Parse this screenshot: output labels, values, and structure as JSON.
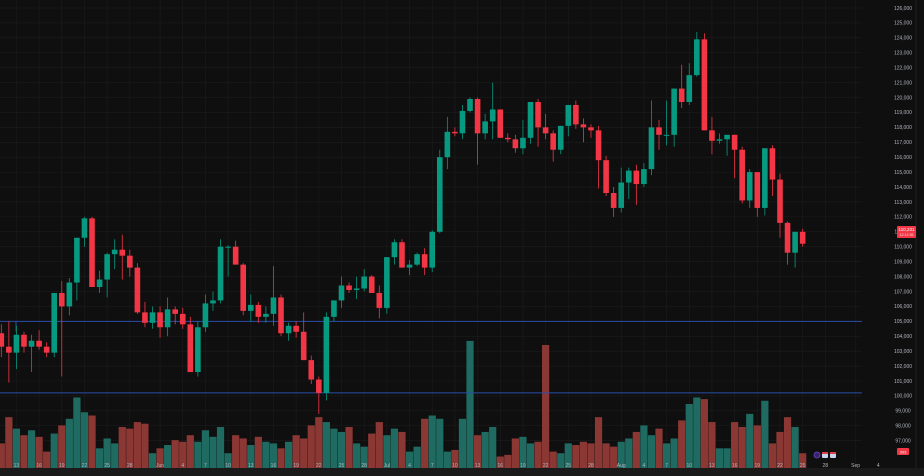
{
  "colors": {
    "background": "#0f0f0f",
    "up": "#089981",
    "down": "#f23645",
    "volume_up": "#1f6b62",
    "volume_down": "#8b3834",
    "grid": "#1c1c1c",
    "hline": "#2a4ea8",
    "axis_text": "#b2b5be",
    "price_tag": "#f23645"
  },
  "price_tag": {
    "price": "110,231",
    "countdown": "12:12:36"
  },
  "volume_tag": {
    "label": "393"
  },
  "hlines": [
    105000,
    100200
  ],
  "chart_data": {
    "type": "candlestick",
    "title": "",
    "xlabel": "",
    "ylabel": "",
    "ylim": [
      96000,
      126000
    ],
    "grid": true,
    "y_ticks": [
      126000,
      125000,
      124000,
      123000,
      122000,
      121000,
      120000,
      119000,
      118000,
      117000,
      116000,
      115000,
      114000,
      113000,
      112000,
      111000,
      110000,
      109000,
      108000,
      107000,
      106000,
      105000,
      104000,
      103000,
      102000,
      101000,
      100000,
      99000,
      98000,
      97000
    ],
    "y_tick_labels": [
      "126,000",
      "125,000",
      "124,000",
      "123,000",
      "122,000",
      "121,000",
      "120,000",
      "119,000",
      "118,000",
      "117,000",
      "116,000",
      "115,000",
      "114,000",
      "113,000",
      "112,000",
      "111,000",
      "110,000",
      "109,000",
      "108,000",
      "107,000",
      "106,000",
      "105,000",
      "104,000",
      "103,000",
      "102,000",
      "101,000",
      "100,000",
      "99,000",
      "98,000",
      "97,000"
    ],
    "x_tick_labels": [
      {
        "label": "13",
        "day": 2
      },
      {
        "label": "16",
        "day": 5
      },
      {
        "label": "19",
        "day": 8
      },
      {
        "label": "22",
        "day": 11
      },
      {
        "label": "25",
        "day": 14
      },
      {
        "label": "28",
        "day": 17
      },
      {
        "label": "Jun",
        "day": 21
      },
      {
        "label": "4",
        "day": 24
      },
      {
        "label": "7",
        "day": 27
      },
      {
        "label": "10",
        "day": 30
      },
      {
        "label": "13",
        "day": 33
      },
      {
        "label": "16",
        "day": 36
      },
      {
        "label": "19",
        "day": 39
      },
      {
        "label": "22",
        "day": 42
      },
      {
        "label": "25",
        "day": 45
      },
      {
        "label": "28",
        "day": 48
      },
      {
        "label": "Jul",
        "day": 51
      },
      {
        "label": "4",
        "day": 54
      },
      {
        "label": "7",
        "day": 57
      },
      {
        "label": "10",
        "day": 60
      },
      {
        "label": "13",
        "day": 63
      },
      {
        "label": "16",
        "day": 66
      },
      {
        "label": "19",
        "day": 69
      },
      {
        "label": "22",
        "day": 72
      },
      {
        "label": "25",
        "day": 75
      },
      {
        "label": "28",
        "day": 78
      },
      {
        "label": "Aug",
        "day": 82
      },
      {
        "label": "4",
        "day": 85
      },
      {
        "label": "7",
        "day": 88
      },
      {
        "label": "10",
        "day": 91
      },
      {
        "label": "13",
        "day": 94
      },
      {
        "label": "16",
        "day": 97
      },
      {
        "label": "19",
        "day": 100
      },
      {
        "label": "22",
        "day": 103
      },
      {
        "label": "25",
        "day": 106
      },
      {
        "label": "28",
        "day": 109
      },
      {
        "label": "Sep",
        "day": 113
      },
      {
        "label": "4",
        "day": 116
      }
    ],
    "candles": [
      {
        "d": 0,
        "o": 104.2,
        "h": 104.8,
        "l": 102.6,
        "c": 103.3,
        "v": 30
      },
      {
        "d": 1,
        "o": 103.3,
        "h": 105.0,
        "l": 100.9,
        "c": 102.9,
        "v": 62
      },
      {
        "d": 2,
        "o": 102.9,
        "h": 104.7,
        "l": 101.8,
        "c": 104.1,
        "v": 48
      },
      {
        "d": 3,
        "o": 104.1,
        "h": 104.3,
        "l": 102.9,
        "c": 103.3,
        "v": 40
      },
      {
        "d": 4,
        "o": 103.3,
        "h": 104.1,
        "l": 101.6,
        "c": 103.7,
        "v": 46
      },
      {
        "d": 5,
        "o": 103.7,
        "h": 104.4,
        "l": 103.1,
        "c": 103.3,
        "v": 38
      },
      {
        "d": 6,
        "o": 103.3,
        "h": 103.6,
        "l": 102.6,
        "c": 102.9,
        "v": 20
      },
      {
        "d": 7,
        "o": 102.9,
        "h": 106.9,
        "l": 102.6,
        "c": 106.9,
        "v": 42
      },
      {
        "d": 8,
        "o": 106.9,
        "h": 107.7,
        "l": 101.3,
        "c": 106.0,
        "v": 52
      },
      {
        "d": 9,
        "o": 106.0,
        "h": 107.9,
        "l": 105.4,
        "c": 107.6,
        "v": 60
      },
      {
        "d": 10,
        "o": 107.6,
        "h": 110.1,
        "l": 106.4,
        "c": 110.6,
        "v": 86
      },
      {
        "d": 11,
        "o": 110.6,
        "h": 112.0,
        "l": 110.0,
        "c": 111.9,
        "v": 68
      },
      {
        "d": 12,
        "o": 111.9,
        "h": 112.0,
        "l": 107.3,
        "c": 107.3,
        "v": 64
      },
      {
        "d": 13,
        "o": 107.3,
        "h": 108.4,
        "l": 106.9,
        "c": 107.8,
        "v": 24
      },
      {
        "d": 14,
        "o": 107.8,
        "h": 109.6,
        "l": 106.6,
        "c": 109.5,
        "v": 36
      },
      {
        "d": 15,
        "o": 109.5,
        "h": 110.5,
        "l": 108.5,
        "c": 109.8,
        "v": 30
      },
      {
        "d": 16,
        "o": 109.8,
        "h": 110.8,
        "l": 107.8,
        "c": 109.4,
        "v": 50
      },
      {
        "d": 17,
        "o": 109.4,
        "h": 109.8,
        "l": 108.0,
        "c": 108.6,
        "v": 48
      },
      {
        "d": 18,
        "o": 108.6,
        "h": 108.9,
        "l": 105.5,
        "c": 105.6,
        "v": 56
      },
      {
        "d": 19,
        "o": 105.6,
        "h": 106.3,
        "l": 104.6,
        "c": 104.9,
        "v": 54
      },
      {
        "d": 20,
        "o": 104.9,
        "h": 106.0,
        "l": 104.5,
        "c": 105.6,
        "v": 18
      },
      {
        "d": 21,
        "o": 105.6,
        "h": 106.0,
        "l": 103.9,
        "c": 104.6,
        "v": 24
      },
      {
        "d": 22,
        "o": 104.6,
        "h": 106.6,
        "l": 104.0,
        "c": 105.8,
        "v": 28
      },
      {
        "d": 23,
        "o": 105.8,
        "h": 106.0,
        "l": 104.8,
        "c": 105.5,
        "v": 34
      },
      {
        "d": 24,
        "o": 105.5,
        "h": 105.9,
        "l": 104.5,
        "c": 104.8,
        "v": 32
      },
      {
        "d": 25,
        "o": 104.8,
        "h": 105.3,
        "l": 101.7,
        "c": 101.6,
        "v": 40
      },
      {
        "d": 26,
        "o": 101.6,
        "h": 105.0,
        "l": 101.3,
        "c": 104.6,
        "v": 32
      },
      {
        "d": 27,
        "o": 104.6,
        "h": 106.8,
        "l": 104.3,
        "c": 106.2,
        "v": 46
      },
      {
        "d": 28,
        "o": 106.2,
        "h": 107.0,
        "l": 105.7,
        "c": 106.4,
        "v": 38
      },
      {
        "d": 29,
        "o": 106.4,
        "h": 110.5,
        "l": 106.2,
        "c": 110.0,
        "v": 50
      },
      {
        "d": 30,
        "o": 110.0,
        "h": 110.1,
        "l": 108.0,
        "c": 110.0,
        "v": 18
      },
      {
        "d": 31,
        "o": 110.0,
        "h": 110.4,
        "l": 108.9,
        "c": 108.8,
        "v": 40
      },
      {
        "d": 32,
        "o": 108.8,
        "h": 108.9,
        "l": 105.4,
        "c": 105.7,
        "v": 36
      },
      {
        "d": 33,
        "o": 105.7,
        "h": 106.8,
        "l": 105.0,
        "c": 106.1,
        "v": 28
      },
      {
        "d": 34,
        "o": 106.1,
        "h": 106.3,
        "l": 104.9,
        "c": 105.3,
        "v": 38
      },
      {
        "d": 35,
        "o": 105.3,
        "h": 106.0,
        "l": 104.9,
        "c": 105.5,
        "v": 32
      },
      {
        "d": 36,
        "o": 105.5,
        "h": 108.7,
        "l": 104.7,
        "c": 106.6,
        "v": 30
      },
      {
        "d": 37,
        "o": 106.6,
        "h": 106.8,
        "l": 104.0,
        "c": 104.2,
        "v": 24
      },
      {
        "d": 38,
        "o": 104.2,
        "h": 104.9,
        "l": 103.7,
        "c": 104.7,
        "v": 32
      },
      {
        "d": 39,
        "o": 104.7,
        "h": 105.0,
        "l": 103.9,
        "c": 104.3,
        "v": 40
      },
      {
        "d": 40,
        "o": 104.3,
        "h": 105.6,
        "l": 102.6,
        "c": 102.4,
        "v": 36
      },
      {
        "d": 41,
        "o": 102.4,
        "h": 102.7,
        "l": 100.8,
        "c": 101.1,
        "v": 52
      },
      {
        "d": 42,
        "o": 101.1,
        "h": 101.3,
        "l": 98.8,
        "c": 100.2,
        "v": 62
      },
      {
        "d": 43,
        "o": 100.2,
        "h": 105.6,
        "l": 99.7,
        "c": 105.3,
        "v": 56
      },
      {
        "d": 44,
        "o": 105.3,
        "h": 106.4,
        "l": 105.0,
        "c": 106.4,
        "v": 48
      },
      {
        "d": 45,
        "o": 106.4,
        "h": 108.0,
        "l": 105.9,
        "c": 107.4,
        "v": 44
      },
      {
        "d": 46,
        "o": 107.4,
        "h": 107.6,
        "l": 106.9,
        "c": 107.1,
        "v": 50
      },
      {
        "d": 47,
        "o": 107.1,
        "h": 108.0,
        "l": 106.5,
        "c": 107.2,
        "v": 30
      },
      {
        "d": 48,
        "o": 107.2,
        "h": 108.5,
        "l": 107.0,
        "c": 108.0,
        "v": 26
      },
      {
        "d": 49,
        "o": 108.0,
        "h": 108.1,
        "l": 106.9,
        "c": 106.9,
        "v": 42
      },
      {
        "d": 50,
        "o": 106.9,
        "h": 107.4,
        "l": 105.2,
        "c": 105.9,
        "v": 56
      },
      {
        "d": 51,
        "o": 105.9,
        "h": 109.1,
        "l": 105.5,
        "c": 109.3,
        "v": 40
      },
      {
        "d": 52,
        "o": 109.3,
        "h": 110.5,
        "l": 108.8,
        "c": 110.3,
        "v": 48
      },
      {
        "d": 53,
        "o": 110.3,
        "h": 110.5,
        "l": 108.6,
        "c": 108.6,
        "v": 44
      },
      {
        "d": 54,
        "o": 108.6,
        "h": 109.1,
        "l": 108.1,
        "c": 108.8,
        "v": 20
      },
      {
        "d": 55,
        "o": 108.8,
        "h": 109.6,
        "l": 108.7,
        "c": 109.5,
        "v": 26
      },
      {
        "d": 56,
        "o": 109.5,
        "h": 109.9,
        "l": 108.1,
        "c": 108.6,
        "v": 60
      },
      {
        "d": 57,
        "o": 108.6,
        "h": 111.1,
        "l": 108.3,
        "c": 111.0,
        "v": 64
      },
      {
        "d": 58,
        "o": 111.0,
        "h": 116.5,
        "l": 110.9,
        "c": 116.0,
        "v": 60
      },
      {
        "d": 59,
        "o": 116.0,
        "h": 118.7,
        "l": 115.2,
        "c": 117.7,
        "v": 20
      },
      {
        "d": 60,
        "o": 117.7,
        "h": 118.0,
        "l": 117.4,
        "c": 117.6,
        "v": 22
      },
      {
        "d": 61,
        "o": 117.6,
        "h": 119.5,
        "l": 117.2,
        "c": 119.1,
        "v": 60
      },
      {
        "d": 62,
        "o": 119.1,
        "h": 120.0,
        "l": 119.0,
        "c": 119.9,
        "v": 155
      },
      {
        "d": 63,
        "o": 119.9,
        "h": 120.0,
        "l": 115.5,
        "c": 117.6,
        "v": 40
      },
      {
        "d": 64,
        "o": 117.6,
        "h": 118.9,
        "l": 117.2,
        "c": 118.4,
        "v": 44
      },
      {
        "d": 65,
        "o": 118.4,
        "h": 121.0,
        "l": 117.2,
        "c": 119.2,
        "v": 50
      },
      {
        "d": 66,
        "o": 119.2,
        "h": 119.2,
        "l": 117.3,
        "c": 117.3,
        "v": 14
      },
      {
        "d": 67,
        "o": 117.3,
        "h": 117.6,
        "l": 117.0,
        "c": 117.2,
        "v": 16
      },
      {
        "d": 68,
        "o": 117.2,
        "h": 117.5,
        "l": 116.3,
        "c": 116.6,
        "v": 36
      },
      {
        "d": 69,
        "o": 116.6,
        "h": 118.5,
        "l": 116.2,
        "c": 117.3,
        "v": 38
      },
      {
        "d": 70,
        "o": 117.3,
        "h": 119.7,
        "l": 116.9,
        "c": 119.7,
        "v": 30
      },
      {
        "d": 71,
        "o": 119.7,
        "h": 119.9,
        "l": 116.7,
        "c": 118.0,
        "v": 32
      },
      {
        "d": 72,
        "o": 118.0,
        "h": 118.9,
        "l": 117.2,
        "c": 117.6,
        "v": 150
      },
      {
        "d": 73,
        "o": 117.6,
        "h": 117.8,
        "l": 115.7,
        "c": 116.5,
        "v": 20
      },
      {
        "d": 74,
        "o": 116.5,
        "h": 117.8,
        "l": 116.2,
        "c": 118.1,
        "v": 18
      },
      {
        "d": 75,
        "o": 118.1,
        "h": 119.5,
        "l": 117.4,
        "c": 119.5,
        "v": 30
      },
      {
        "d": 76,
        "o": 119.5,
        "h": 119.8,
        "l": 117.9,
        "c": 118.2,
        "v": 28
      },
      {
        "d": 77,
        "o": 118.2,
        "h": 118.6,
        "l": 117.0,
        "c": 118.0,
        "v": 32
      },
      {
        "d": 78,
        "o": 118.0,
        "h": 118.2,
        "l": 117.3,
        "c": 117.8,
        "v": 30
      },
      {
        "d": 79,
        "o": 117.8,
        "h": 118.1,
        "l": 113.9,
        "c": 115.8,
        "v": 62
      },
      {
        "d": 80,
        "o": 115.8,
        "h": 116.1,
        "l": 113.4,
        "c": 113.6,
        "v": 30
      },
      {
        "d": 81,
        "o": 113.6,
        "h": 114.0,
        "l": 112.0,
        "c": 112.6,
        "v": 26
      },
      {
        "d": 82,
        "o": 112.6,
        "h": 115.3,
        "l": 112.3,
        "c": 114.3,
        "v": 32
      },
      {
        "d": 83,
        "o": 114.3,
        "h": 115.3,
        "l": 113.2,
        "c": 115.1,
        "v": 36
      },
      {
        "d": 84,
        "o": 115.1,
        "h": 115.5,
        "l": 112.8,
        "c": 114.2,
        "v": 44
      },
      {
        "d": 85,
        "o": 114.2,
        "h": 115.6,
        "l": 114.0,
        "c": 115.2,
        "v": 52
      },
      {
        "d": 86,
        "o": 115.2,
        "h": 119.8,
        "l": 114.8,
        "c": 118.0,
        "v": 40
      },
      {
        "d": 87,
        "o": 118.0,
        "h": 118.5,
        "l": 116.5,
        "c": 117.5,
        "v": 48
      },
      {
        "d": 88,
        "o": 117.5,
        "h": 119.8,
        "l": 116.8,
        "c": 117.5,
        "v": 30
      },
      {
        "d": 89,
        "o": 117.5,
        "h": 120.0,
        "l": 116.7,
        "c": 120.6,
        "v": 36
      },
      {
        "d": 90,
        "o": 120.6,
        "h": 122.2,
        "l": 119.3,
        "c": 119.7,
        "v": 58
      },
      {
        "d": 91,
        "o": 119.7,
        "h": 122.3,
        "l": 119.5,
        "c": 121.5,
        "v": 78
      },
      {
        "d": 92,
        "o": 121.5,
        "h": 124.4,
        "l": 121.4,
        "c": 123.9,
        "v": 86
      },
      {
        "d": 93,
        "o": 123.9,
        "h": 124.3,
        "l": 117.8,
        "c": 117.8,
        "v": 84
      },
      {
        "d": 94,
        "o": 117.8,
        "h": 118.7,
        "l": 116.2,
        "c": 117.1,
        "v": 56
      },
      {
        "d": 95,
        "o": 117.1,
        "h": 117.6,
        "l": 116.9,
        "c": 117.2,
        "v": 24
      },
      {
        "d": 96,
        "o": 117.2,
        "h": 117.4,
        "l": 116.1,
        "c": 117.5,
        "v": 24
      },
      {
        "d": 97,
        "o": 117.5,
        "h": 117.4,
        "l": 114.6,
        "c": 116.5,
        "v": 56
      },
      {
        "d": 98,
        "o": 116.5,
        "h": 116.7,
        "l": 112.9,
        "c": 113.1,
        "v": 50
      },
      {
        "d": 99,
        "o": 113.1,
        "h": 115.2,
        "l": 112.6,
        "c": 115.0,
        "v": 66
      },
      {
        "d": 100,
        "o": 115.0,
        "h": 115.0,
        "l": 112.0,
        "c": 112.6,
        "v": 52
      },
      {
        "d": 101,
        "o": 112.6,
        "h": 116.4,
        "l": 112.1,
        "c": 116.6,
        "v": 82
      },
      {
        "d": 102,
        "o": 116.6,
        "h": 116.8,
        "l": 113.4,
        "c": 114.5,
        "v": 30
      },
      {
        "d": 103,
        "o": 114.5,
        "h": 114.9,
        "l": 110.6,
        "c": 111.6,
        "v": 44
      },
      {
        "d": 104,
        "o": 111.6,
        "h": 111.7,
        "l": 108.8,
        "c": 109.6,
        "v": 62
      },
      {
        "d": 105,
        "o": 109.6,
        "h": 110.8,
        "l": 108.6,
        "c": 111.0,
        "v": 50
      },
      {
        "d": 106,
        "o": 111.0,
        "h": 111.2,
        "l": 110.0,
        "c": 110.2,
        "v": 18
      }
    ]
  }
}
